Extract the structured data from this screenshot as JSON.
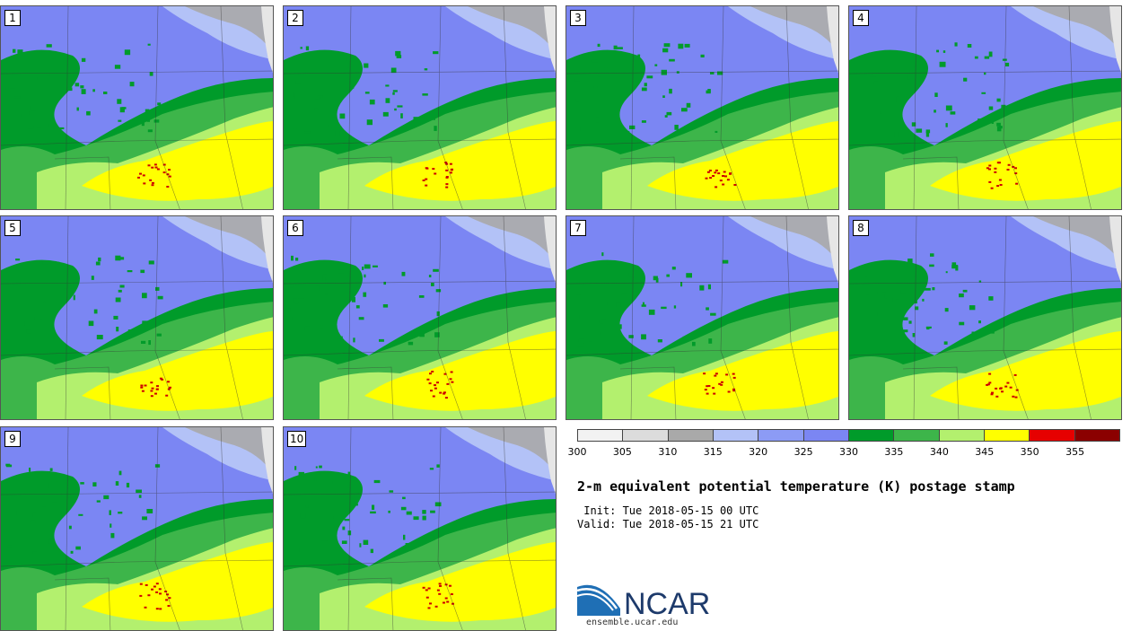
{
  "stamps": [
    {
      "label": "1"
    },
    {
      "label": "2"
    },
    {
      "label": "3"
    },
    {
      "label": "4"
    },
    {
      "label": "5"
    },
    {
      "label": "6"
    },
    {
      "label": "7"
    },
    {
      "label": "8"
    },
    {
      "label": "9"
    },
    {
      "label": "10"
    }
  ],
  "colorbar": {
    "ticks": [
      "300",
      "305",
      "310",
      "315",
      "320",
      "325",
      "330",
      "335",
      "340",
      "345",
      "350",
      "355"
    ],
    "colors": [
      "#f2f2f2",
      "#dcdcdc",
      "#a9a9a9",
      "#b3c2f7",
      "#8c9bf5",
      "#7b86f3",
      "#009b2a",
      "#3db54a",
      "#b3f06e",
      "#ffff00",
      "#e60000",
      "#8b0000"
    ]
  },
  "title": "2-m equivalent potential temperature (K) postage stamp",
  "init": " Init: Tue 2018-05-15 00 UTC",
  "valid": "Valid: Tue 2018-05-15 21 UTC",
  "logo": {
    "text": "NCAR",
    "url": "ensemble.ucar.edu"
  },
  "map_colors": {
    "purple": "#7b86f3",
    "lightblue": "#b3c2f7",
    "gray": "#a9a9a9",
    "darkgreen": "#009b2a",
    "midgreen": "#3db54a",
    "lightgreen": "#b3f06e",
    "yellow": "#ffff00",
    "red": "#cc0000",
    "coast": "#e6e6e6"
  }
}
